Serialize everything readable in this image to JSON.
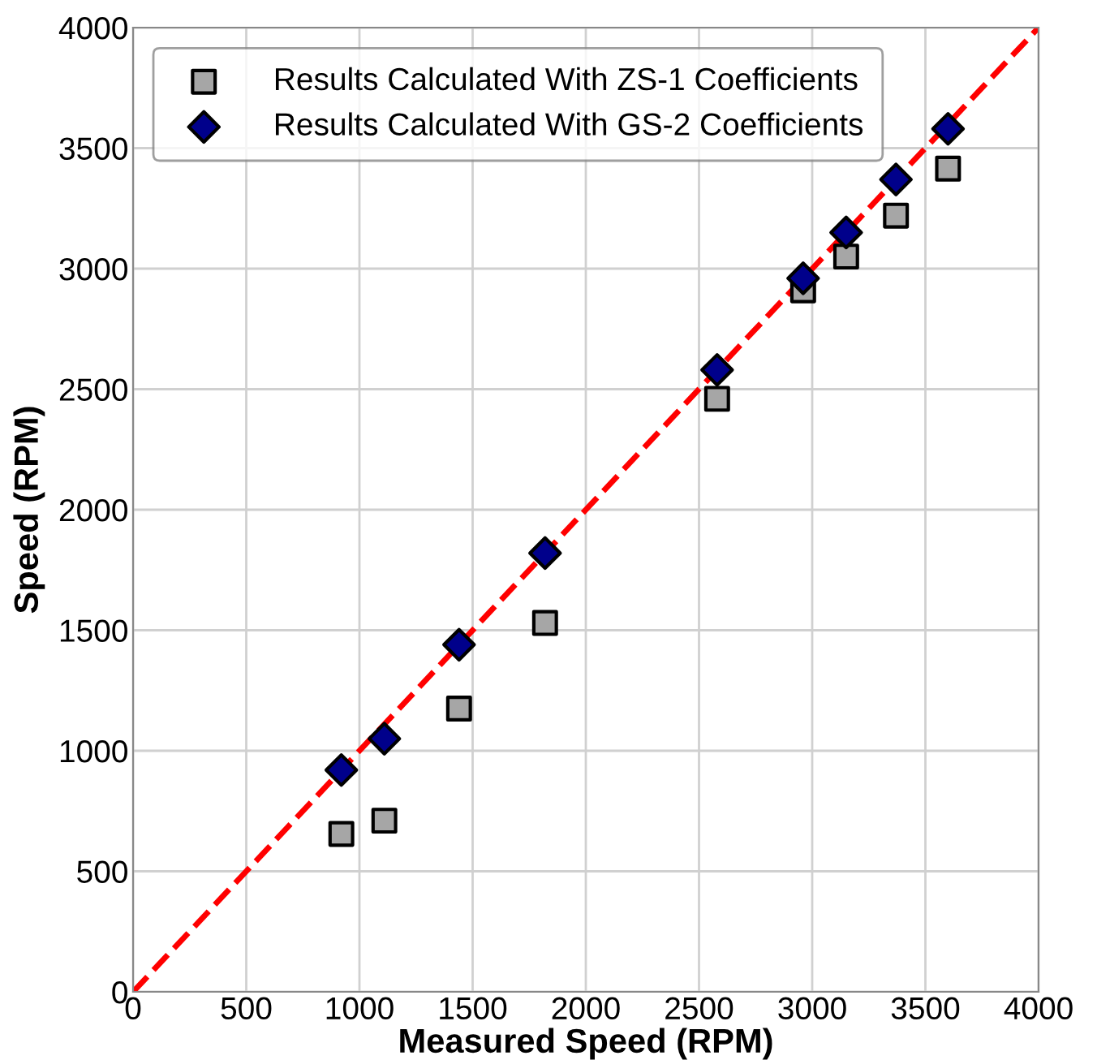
{
  "chart_data": {
    "type": "scatter",
    "xlabel": "Measured Speed (RPM)",
    "ylabel": "Speed (RPM)",
    "xlim": [
      0,
      4000
    ],
    "ylim": [
      0,
      4000
    ],
    "xticks": [
      0,
      500,
      1000,
      1500,
      2000,
      2500,
      3000,
      3500,
      4000
    ],
    "yticks": [
      0,
      500,
      1000,
      1500,
      2000,
      2500,
      3000,
      3500,
      4000
    ],
    "grid": true,
    "legend": "top left",
    "series": [
      {
        "type": "line",
        "color": "#ff0000",
        "line_style": "dashed",
        "marker": "none",
        "x": [
          0,
          4000
        ],
        "values": [
          0,
          4000
        ]
      },
      {
        "name": "Results Calculated With ZS-1 Coefficients",
        "color": "#a6a6a6",
        "marker": "square",
        "x": [
          920,
          1110,
          1440,
          1820,
          2580,
          2960,
          3150,
          3370,
          3600
        ],
        "values": [
          655,
          710,
          1175,
          1530,
          2460,
          2910,
          3050,
          3220,
          3415
        ]
      },
      {
        "name": "Results Calculated With GS-2 Coefficients",
        "color": "#00008b",
        "marker": "diamond",
        "x": [
          920,
          1110,
          1440,
          1820,
          2580,
          2960,
          3150,
          3370,
          3600
        ],
        "values": [
          920,
          1050,
          1440,
          1820,
          2580,
          2960,
          3150,
          3370,
          3580
        ]
      }
    ]
  }
}
